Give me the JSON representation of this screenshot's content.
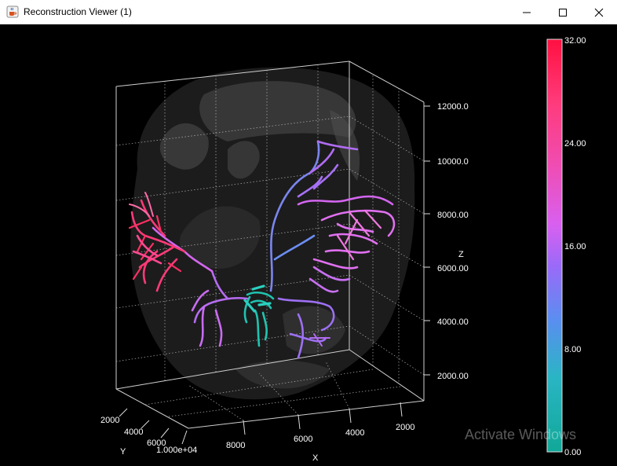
{
  "window": {
    "title": "Reconstruction Viewer (1)",
    "icon": "java-cup-icon",
    "controls": [
      "minimize-icon",
      "maximize-icon",
      "close-icon"
    ]
  },
  "axes": {
    "x_label": "X",
    "y_label": "Y",
    "z_label": "Z",
    "x_ticks": [
      "2000",
      "4000",
      "6000",
      "8000"
    ],
    "y_ticks": [
      "2000",
      "4000",
      "6000",
      "1.000e+04"
    ],
    "z_ticks": [
      "2000.00",
      "4000.00",
      "6000.00",
      "8000.00",
      "10000.0",
      "12000.0"
    ]
  },
  "colorbar": {
    "tick_labels": [
      "32.00",
      "24.00",
      "16.00",
      "8.00",
      "0.00"
    ],
    "colors": [
      "#ff1a3d",
      "#ff4d9a",
      "#e85cf0",
      "#8a6cff",
      "#4aa0e6",
      "#1ab8b0"
    ]
  },
  "watermark": "Activate Windows"
}
